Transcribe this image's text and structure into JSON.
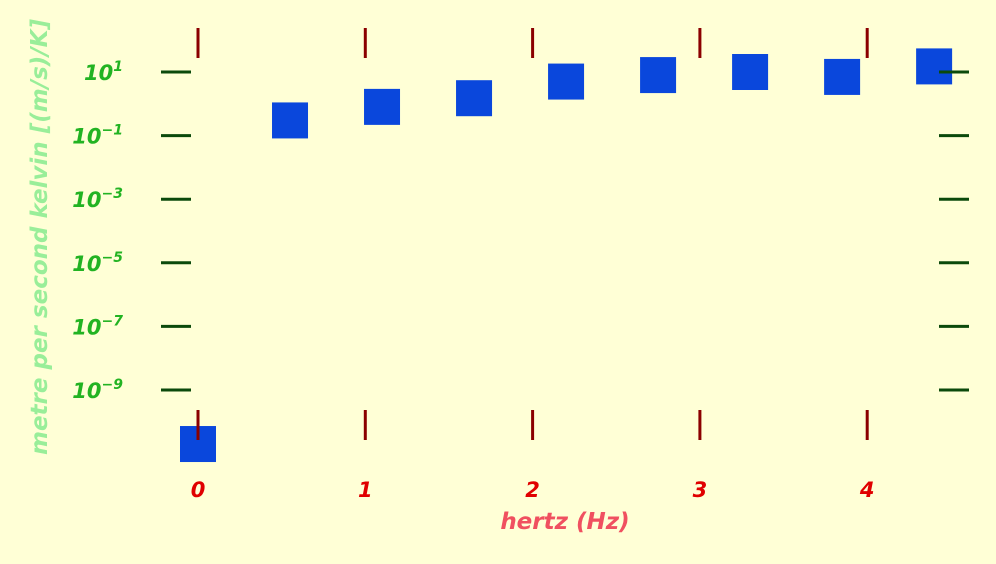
{
  "chart_data": {
    "type": "scatter",
    "xlabel": "hertz (Hz)",
    "ylabel": "metre per second kelvin [(m/s)/K]",
    "xlim": [
      -0.25,
      4.55
    ],
    "ylim_log10": [
      -10.6,
      2.0
    ],
    "y_scale": "log",
    "x_ticks": [
      "0",
      "1",
      "2",
      "3",
      "4"
    ],
    "y_ticks": [
      {
        "base": "10",
        "exp": "1"
      },
      {
        "base": "10",
        "exp": "−1"
      },
      {
        "base": "10",
        "exp": "−3"
      },
      {
        "base": "10",
        "exp": "−5"
      },
      {
        "base": "10",
        "exp": "−7"
      },
      {
        "base": "10",
        "exp": "−9"
      }
    ],
    "y_tick_exponents": [
      1,
      -1,
      -3,
      -5,
      -7,
      -9
    ],
    "x_tick_values": [
      0,
      1,
      2,
      3,
      4
    ],
    "marker": "square",
    "colors": {
      "marker": "#0a47dc",
      "xtick": "#8b0000",
      "ytick": "#0b4a0b",
      "background": "#ffffd6"
    },
    "series": [
      {
        "x": [
          0,
          0.55,
          1.1,
          1.65,
          2.2,
          2.75,
          3.3,
          3.85,
          4.4
        ],
        "y": [
          2e-11,
          0.3,
          0.8,
          1.5,
          5,
          8,
          10,
          7,
          15
        ]
      }
    ]
  }
}
